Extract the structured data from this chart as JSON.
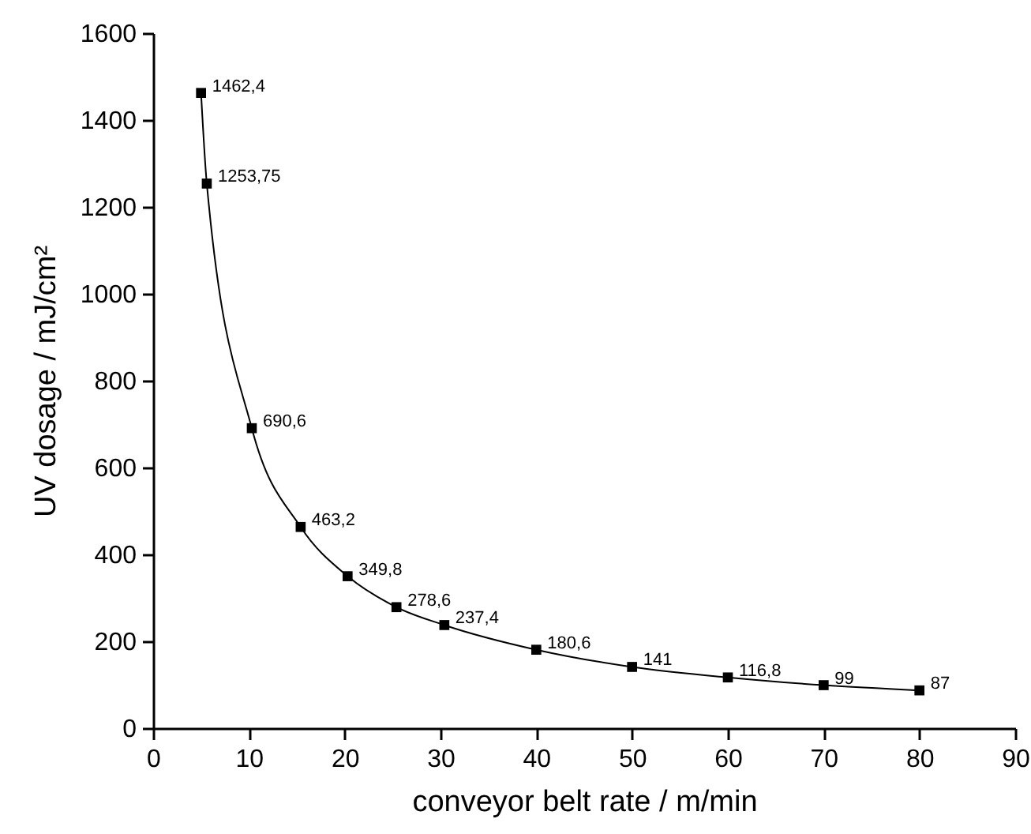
{
  "chart_data": {
    "type": "line",
    "xlabel": "conveyor belt rate / m/min",
    "ylabel": "UV dosage / mJ/cm²",
    "x": [
      5,
      5.6,
      10.3,
      15.4,
      20.3,
      25.4,
      30.4,
      40,
      50,
      60,
      70,
      80
    ],
    "series": [
      {
        "color": "#000000",
        "values": [
          1462.4,
          1253.75,
          690.6,
          463.2,
          349.8,
          278.6,
          237.4,
          180.6,
          141,
          116.8,
          99,
          87
        ],
        "value_labels": [
          "1462,4",
          "1253,75",
          "690,6",
          "463,2",
          "349,8",
          "278,6",
          "237,4",
          "180,6",
          "141",
          "116,8",
          "99",
          "87"
        ]
      }
    ],
    "xlim": [
      0,
      90
    ],
    "xticks": [
      0,
      10,
      20,
      30,
      40,
      50,
      60,
      70,
      80,
      90
    ],
    "ylim": [
      0,
      1600
    ],
    "yticks": [
      0,
      200,
      400,
      600,
      800,
      1000,
      1200,
      1400,
      1600
    ],
    "marker": "square",
    "line_style": "solid",
    "grid": false
  }
}
